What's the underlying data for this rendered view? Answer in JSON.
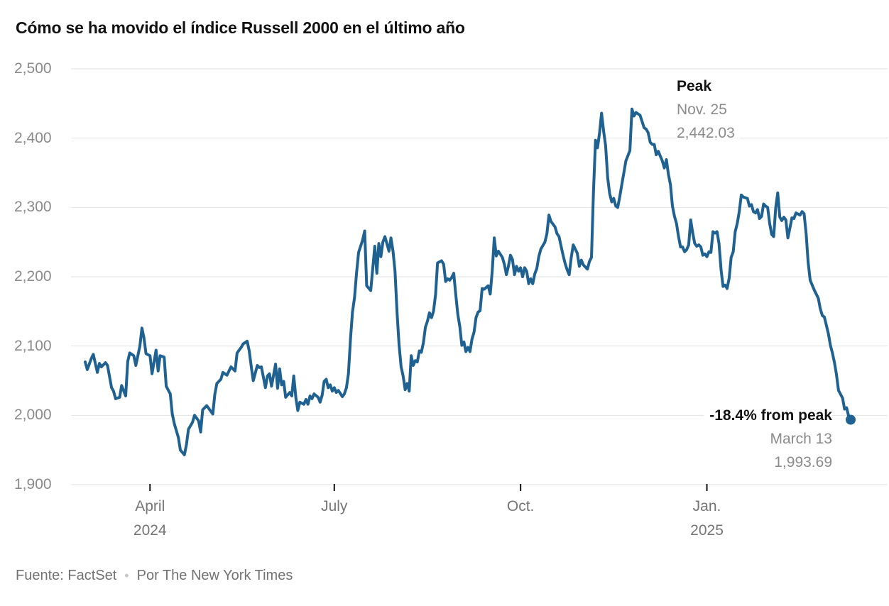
{
  "title": "Cómo se ha movido el índice Russell 2000 en el último año",
  "annotations": {
    "peak": {
      "label": "Peak",
      "date": "Nov. 25",
      "value": "2,442.03"
    },
    "trough": {
      "label": "-18.4% from peak",
      "date": "March 13",
      "value": "1,993.69"
    }
  },
  "footer": {
    "source": "Fuente: FactSet",
    "separator": "•",
    "byline": "Por The New York Times"
  },
  "colors": {
    "line": "#1f6191",
    "grid": "#e2e2e2",
    "tick": "#121212",
    "title_text": "#121212",
    "y_label": "#8a8a8a",
    "x_label": "#757575",
    "annotation_gray": "#8b8b8b",
    "footer_text": "#727272"
  },
  "chart_data": {
    "type": "line",
    "title": "Cómo se ha movido el índice Russell 2000 en el último año",
    "series_name": "Russell 2000 index",
    "source": "FactSet",
    "ylim": [
      1900,
      2500
    ],
    "grid": true,
    "y_ticks": [
      {
        "value": 2500,
        "label": "2,500"
      },
      {
        "value": 2400,
        "label": "2,400"
      },
      {
        "value": 2300,
        "label": "2,300"
      },
      {
        "value": 2200,
        "label": "2,200"
      },
      {
        "value": 2100,
        "label": "2,100"
      },
      {
        "value": 2000,
        "label": "2,000"
      },
      {
        "value": 1900,
        "label": "1,900"
      }
    ],
    "x_axis": {
      "start_date": "2024-02-29",
      "end_date": "2025-03-13",
      "total_days": 378,
      "ticks": [
        {
          "label": "April",
          "sublabel": "2024",
          "day": 32
        },
        {
          "label": "July",
          "sublabel": "",
          "day": 123
        },
        {
          "label": "Oct.",
          "sublabel": "",
          "day": 215
        },
        {
          "label": "Jan.",
          "sublabel": "2025",
          "day": 307
        }
      ]
    },
    "peak_point": {
      "day": 270,
      "date": "2024-11-25",
      "value": 2442.03
    },
    "end_point": {
      "day": 378,
      "date": "2025-03-13",
      "value": 1993.69
    },
    "points": [
      [
        0,
        2077
      ],
      [
        1,
        2066
      ],
      [
        3,
        2082
      ],
      [
        4,
        2088
      ],
      [
        6,
        2062
      ],
      [
        7,
        2075
      ],
      [
        8,
        2070
      ],
      [
        10,
        2076
      ],
      [
        11,
        2072
      ],
      [
        13,
        2040
      ],
      [
        14,
        2035
      ],
      [
        15,
        2024
      ],
      [
        17,
        2026
      ],
      [
        18,
        2043
      ],
      [
        20,
        2028
      ],
      [
        21,
        2078
      ],
      [
        22,
        2090
      ],
      [
        24,
        2086
      ],
      [
        25,
        2072
      ],
      [
        27,
        2100
      ],
      [
        28,
        2126
      ],
      [
        29,
        2112
      ],
      [
        30,
        2089
      ],
      [
        32,
        2086
      ],
      [
        33,
        2060
      ],
      [
        35,
        2094
      ],
      [
        36,
        2064
      ],
      [
        37,
        2086
      ],
      [
        39,
        2084
      ],
      [
        40,
        2042
      ],
      [
        42,
        2031
      ],
      [
        43,
        2002
      ],
      [
        44,
        1988
      ],
      [
        46,
        1968
      ],
      [
        47,
        1950
      ],
      [
        49,
        1943
      ],
      [
        50,
        1958
      ],
      [
        51,
        1980
      ],
      [
        53,
        1990
      ],
      [
        54,
        2000
      ],
      [
        56,
        1992
      ],
      [
        57,
        1976
      ],
      [
        58,
        2008
      ],
      [
        60,
        2014
      ],
      [
        61,
        2010
      ],
      [
        63,
        2002
      ],
      [
        64,
        2030
      ],
      [
        65,
        2046
      ],
      [
        67,
        2052
      ],
      [
        68,
        2062
      ],
      [
        70,
        2058
      ],
      [
        71,
        2064
      ],
      [
        72,
        2070
      ],
      [
        74,
        2064
      ],
      [
        75,
        2090
      ],
      [
        77,
        2098
      ],
      [
        78,
        2103
      ],
      [
        80,
        2107
      ],
      [
        81,
        2093
      ],
      [
        82,
        2070
      ],
      [
        83,
        2050
      ],
      [
        85,
        2072
      ],
      [
        86,
        2069
      ],
      [
        87,
        2070
      ],
      [
        89,
        2040
      ],
      [
        90,
        2057
      ],
      [
        91,
        2060
      ],
      [
        92,
        2042
      ],
      [
        94,
        2074
      ],
      [
        95,
        2039
      ],
      [
        96,
        2067
      ],
      [
        97,
        2044
      ],
      [
        98,
        2049
      ],
      [
        99,
        2026
      ],
      [
        101,
        2033
      ],
      [
        102,
        2028
      ],
      [
        103,
        2057
      ],
      [
        104,
        2026
      ],
      [
        105,
        2007
      ],
      [
        106,
        2019
      ],
      [
        108,
        2016
      ],
      [
        109,
        2023
      ],
      [
        110,
        2016
      ],
      [
        111,
        2028
      ],
      [
        112,
        2024
      ],
      [
        113,
        2031
      ],
      [
        115,
        2026
      ],
      [
        116,
        2019
      ],
      [
        117,
        2029
      ],
      [
        118,
        2049
      ],
      [
        119,
        2052
      ],
      [
        120,
        2040
      ],
      [
        121,
        2044
      ],
      [
        122,
        2035
      ],
      [
        123,
        2040
      ],
      [
        124,
        2033
      ],
      [
        125,
        2036
      ],
      [
        127,
        2027
      ],
      [
        128,
        2031
      ],
      [
        129,
        2040
      ],
      [
        130,
        2060
      ],
      [
        131,
        2110
      ],
      [
        132,
        2149
      ],
      [
        133,
        2170
      ],
      [
        134,
        2205
      ],
      [
        135,
        2235
      ],
      [
        137,
        2253
      ],
      [
        138,
        2266
      ],
      [
        139,
        2187
      ],
      [
        141,
        2180
      ],
      [
        143,
        2244
      ],
      [
        144,
        2205
      ],
      [
        145,
        2248
      ],
      [
        146,
        2229
      ],
      [
        147,
        2250
      ],
      [
        148,
        2258
      ],
      [
        150,
        2237
      ],
      [
        151,
        2256
      ],
      [
        152,
        2237
      ],
      [
        153,
        2208
      ],
      [
        154,
        2148
      ],
      [
        155,
        2102
      ],
      [
        156,
        2070
      ],
      [
        157,
        2057
      ],
      [
        158,
        2037
      ],
      [
        159,
        2046
      ],
      [
        160,
        2035
      ],
      [
        161,
        2086
      ],
      [
        162,
        2072
      ],
      [
        163,
        2079
      ],
      [
        164,
        2077
      ],
      [
        165,
        2093
      ],
      [
        166,
        2091
      ],
      [
        167,
        2105
      ],
      [
        168,
        2127
      ],
      [
        169,
        2136
      ],
      [
        170,
        2148
      ],
      [
        171,
        2141
      ],
      [
        172,
        2150
      ],
      [
        173,
        2174
      ],
      [
        174,
        2220
      ],
      [
        176,
        2223
      ],
      [
        177,
        2218
      ],
      [
        178,
        2193
      ],
      [
        179,
        2197
      ],
      [
        180,
        2195
      ],
      [
        181,
        2199
      ],
      [
        182,
        2205
      ],
      [
        183,
        2174
      ],
      [
        184,
        2146
      ],
      [
        185,
        2128
      ],
      [
        186,
        2101
      ],
      [
        187,
        2106
      ],
      [
        188,
        2092
      ],
      [
        189,
        2098
      ],
      [
        190,
        2092
      ],
      [
        191,
        2110
      ],
      [
        192,
        2120
      ],
      [
        193,
        2141
      ],
      [
        194,
        2149
      ],
      [
        195,
        2151
      ],
      [
        196,
        2183
      ],
      [
        197,
        2182
      ],
      [
        199,
        2187
      ],
      [
        200,
        2175
      ],
      [
        201,
        2208
      ],
      [
        202,
        2256
      ],
      [
        203,
        2230
      ],
      [
        204,
        2237
      ],
      [
        206,
        2228
      ],
      [
        207,
        2218
      ],
      [
        208,
        2203
      ],
      [
        209,
        2215
      ],
      [
        210,
        2231
      ],
      [
        211,
        2225
      ],
      [
        212,
        2203
      ],
      [
        213,
        2215
      ],
      [
        214,
        2208
      ],
      [
        215,
        2213
      ],
      [
        216,
        2200
      ],
      [
        217,
        2213
      ],
      [
        218,
        2208
      ],
      [
        219,
        2190
      ],
      [
        220,
        2197
      ],
      [
        221,
        2190
      ],
      [
        222,
        2204
      ],
      [
        223,
        2212
      ],
      [
        224,
        2229
      ],
      [
        225,
        2240
      ],
      [
        227,
        2250
      ],
      [
        228,
        2262
      ],
      [
        229,
        2289
      ],
      [
        230,
        2280
      ],
      [
        232,
        2272
      ],
      [
        233,
        2262
      ],
      [
        234,
        2258
      ],
      [
        235,
        2244
      ],
      [
        236,
        2231
      ],
      [
        237,
        2219
      ],
      [
        238,
        2210
      ],
      [
        239,
        2203
      ],
      [
        240,
        2227
      ],
      [
        241,
        2246
      ],
      [
        243,
        2234
      ],
      [
        244,
        2215
      ],
      [
        245,
        2224
      ],
      [
        246,
        2217
      ],
      [
        248,
        2211
      ],
      [
        249,
        2222
      ],
      [
        250,
        2228
      ],
      [
        251,
        2323
      ],
      [
        252,
        2397
      ],
      [
        253,
        2386
      ],
      [
        254,
        2408
      ],
      [
        255,
        2436
      ],
      [
        256,
        2410
      ],
      [
        257,
        2389
      ],
      [
        258,
        2343
      ],
      [
        259,
        2320
      ],
      [
        260,
        2308
      ],
      [
        261,
        2313
      ],
      [
        262,
        2302
      ],
      [
        263,
        2300
      ],
      [
        264,
        2316
      ],
      [
        265,
        2333
      ],
      [
        266,
        2350
      ],
      [
        267,
        2367
      ],
      [
        269,
        2382
      ],
      [
        270,
        2442.03
      ],
      [
        271,
        2432
      ],
      [
        272,
        2437
      ],
      [
        273,
        2435
      ],
      [
        274,
        2433
      ],
      [
        276,
        2415
      ],
      [
        277,
        2413
      ],
      [
        278,
        2408
      ],
      [
        279,
        2394
      ],
      [
        280,
        2391
      ],
      [
        281,
        2391
      ],
      [
        282,
        2376
      ],
      [
        283,
        2381
      ],
      [
        285,
        2367
      ],
      [
        286,
        2357
      ],
      [
        287,
        2369
      ],
      [
        288,
        2348
      ],
      [
        289,
        2333
      ],
      [
        290,
        2302
      ],
      [
        291,
        2287
      ],
      [
        292,
        2277
      ],
      [
        293,
        2258
      ],
      [
        294,
        2243
      ],
      [
        295,
        2243
      ],
      [
        296,
        2236
      ],
      [
        297,
        2239
      ],
      [
        298,
        2246
      ],
      [
        299,
        2282
      ],
      [
        300,
        2263
      ],
      [
        301,
        2248
      ],
      [
        302,
        2244
      ],
      [
        303,
        2246
      ],
      [
        304,
        2243
      ],
      [
        305,
        2231
      ],
      [
        306,
        2233
      ],
      [
        307,
        2229
      ],
      [
        308,
        2236
      ],
      [
        309,
        2235
      ],
      [
        310,
        2265
      ],
      [
        311,
        2263
      ],
      [
        312,
        2265
      ],
      [
        313,
        2248
      ],
      [
        314,
        2210
      ],
      [
        315,
        2186
      ],
      [
        316,
        2188
      ],
      [
        317,
        2183
      ],
      [
        318,
        2198
      ],
      [
        319,
        2228
      ],
      [
        320,
        2236
      ],
      [
        321,
        2265
      ],
      [
        322,
        2277
      ],
      [
        323,
        2294
      ],
      [
        324,
        2318
      ],
      [
        325,
        2315
      ],
      [
        327,
        2313
      ],
      [
        328,
        2302
      ],
      [
        329,
        2304
      ],
      [
        330,
        2294
      ],
      [
        331,
        2292
      ],
      [
        332,
        2297
      ],
      [
        333,
        2284
      ],
      [
        334,
        2287
      ],
      [
        335,
        2305
      ],
      [
        336,
        2302
      ],
      [
        337,
        2300
      ],
      [
        338,
        2277
      ],
      [
        339,
        2261
      ],
      [
        340,
        2258
      ],
      [
        341,
        2300
      ],
      [
        342,
        2321
      ],
      [
        343,
        2286
      ],
      [
        344,
        2281
      ],
      [
        345,
        2286
      ],
      [
        346,
        2282
      ],
      [
        347,
        2256
      ],
      [
        348,
        2270
      ],
      [
        349,
        2285
      ],
      [
        350,
        2284
      ],
      [
        351,
        2292
      ],
      [
        353,
        2289
      ],
      [
        354,
        2294
      ],
      [
        355,
        2291
      ],
      [
        356,
        2262
      ],
      [
        357,
        2221
      ],
      [
        358,
        2195
      ],
      [
        360,
        2181
      ],
      [
        362,
        2169
      ],
      [
        363,
        2154
      ],
      [
        364,
        2144
      ],
      [
        365,
        2142
      ],
      [
        366,
        2130
      ],
      [
        367,
        2118
      ],
      [
        368,
        2101
      ],
      [
        369,
        2090
      ],
      [
        370,
        2076
      ],
      [
        371,
        2059
      ],
      [
        372,
        2036
      ],
      [
        374,
        2025
      ],
      [
        375,
        2009
      ],
      [
        376,
        2011
      ],
      [
        377,
        1999
      ],
      [
        378,
        1993.69
      ]
    ]
  }
}
